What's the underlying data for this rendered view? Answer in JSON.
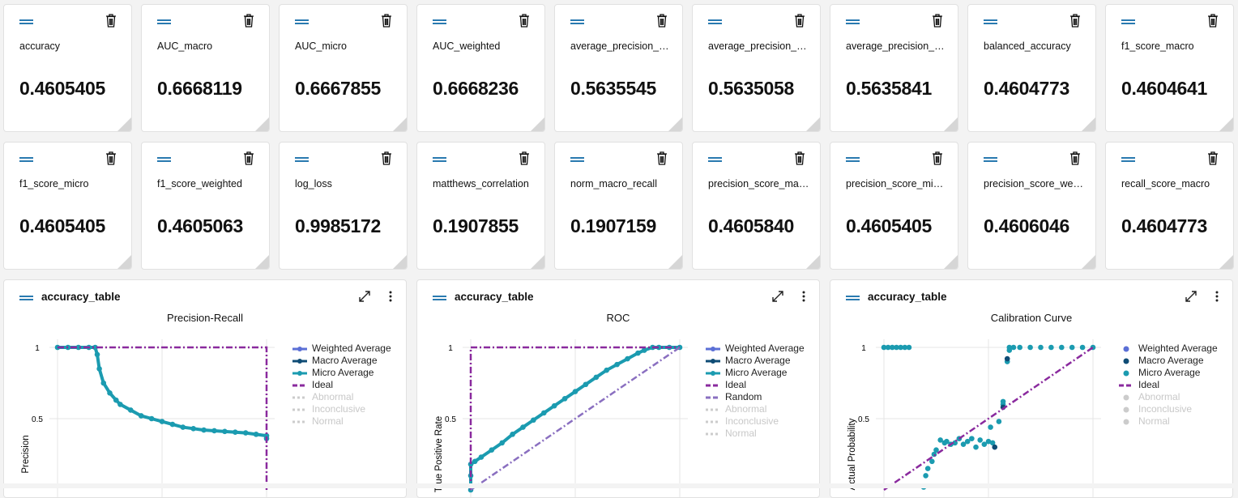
{
  "metrics_row1": [
    {
      "name": "accuracy",
      "value": "0.4605405"
    },
    {
      "name": "AUC_macro",
      "value": "0.6668119"
    },
    {
      "name": "AUC_micro",
      "value": "0.6667855"
    },
    {
      "name": "AUC_weighted",
      "value": "0.6668236"
    },
    {
      "name": "average_precision_sco...",
      "value": "0.5635545"
    },
    {
      "name": "average_precision_sco...",
      "value": "0.5635058"
    },
    {
      "name": "average_precision_sco...",
      "value": "0.5635841"
    },
    {
      "name": "balanced_accuracy",
      "value": "0.4604773"
    },
    {
      "name": "f1_score_macro",
      "value": "0.4604641"
    }
  ],
  "metrics_row2": [
    {
      "name": "f1_score_micro",
      "value": "0.4605405"
    },
    {
      "name": "f1_score_weighted",
      "value": "0.4605063"
    },
    {
      "name": "log_loss",
      "value": "0.9985172"
    },
    {
      "name": "matthews_correlation",
      "value": "0.1907855"
    },
    {
      "name": "norm_macro_recall",
      "value": "0.1907159"
    },
    {
      "name": "precision_score_macro",
      "value": "0.4605840"
    },
    {
      "name": "precision_score_micro",
      "value": "0.4605405"
    },
    {
      "name": "precision_score_weigh...",
      "value": "0.4606046"
    },
    {
      "name": "recall_score_macro",
      "value": "0.4604773"
    }
  ],
  "icons": {
    "drag": "drag-handle-icon",
    "delete": "trash-icon",
    "expand": "expand-icon",
    "more": "more-vertical-icon"
  },
  "colors": {
    "weighted": "#5b6fd6",
    "macro": "#0f4c75",
    "micro": "#1b9bb0",
    "ideal": "#8a2a9e",
    "random": "#8a6fc0",
    "inactive": "#cccccc",
    "accent": "#2a7ab0"
  },
  "chart_data": [
    {
      "panel_title": "accuracy_table",
      "title": "Precision-Recall",
      "type": "line",
      "ylabel": "Precision",
      "xlim": [
        0,
        1
      ],
      "ylim": [
        0,
        1
      ],
      "yticks": [
        "1",
        "0.5"
      ],
      "grid": true,
      "legend_position": "right",
      "legend": [
        "Weighted Average",
        "Macro Average",
        "Micro Average",
        "Ideal",
        "Abnormal",
        "Inconclusive",
        "Normal"
      ],
      "series": [
        {
          "name": "Micro Average",
          "x": [
            0,
            0.05,
            0.1,
            0.15,
            0.18,
            0.19,
            0.2,
            0.22,
            0.25,
            0.28,
            0.3,
            0.35,
            0.4,
            0.45,
            0.5,
            0.55,
            0.6,
            0.65,
            0.7,
            0.75,
            0.8,
            0.85,
            0.9,
            0.95,
            1,
            1
          ],
          "y": [
            1,
            1,
            1,
            1,
            1,
            0.95,
            0.85,
            0.75,
            0.68,
            0.63,
            0.6,
            0.56,
            0.52,
            0.5,
            0.48,
            0.46,
            0.44,
            0.43,
            0.42,
            0.415,
            0.41,
            0.405,
            0.4,
            0.39,
            0.38,
            0.36
          ]
        },
        {
          "name": "Ideal",
          "x": [
            0,
            1,
            1
          ],
          "y": [
            1,
            1,
            0
          ]
        }
      ]
    },
    {
      "panel_title": "accuracy_table",
      "title": "ROC",
      "type": "line",
      "ylabel": "True Positive Rate",
      "xlim": [
        0,
        1
      ],
      "ylim": [
        0,
        1
      ],
      "yticks": [
        "1",
        "0.5"
      ],
      "grid": true,
      "legend_position": "right",
      "legend": [
        "Weighted Average",
        "Macro Average",
        "Micro Average",
        "Ideal",
        "Random",
        "Abnormal",
        "Inconclusive",
        "Normal"
      ],
      "series": [
        {
          "name": "Micro Average",
          "x": [
            0,
            0,
            0,
            0.02,
            0.05,
            0.1,
            0.15,
            0.2,
            0.25,
            0.3,
            0.35,
            0.4,
            0.45,
            0.5,
            0.55,
            0.6,
            0.65,
            0.7,
            0.75,
            0.8,
            0.83,
            0.87,
            0.9,
            0.95,
            1
          ],
          "y": [
            0,
            0.1,
            0.18,
            0.2,
            0.23,
            0.28,
            0.33,
            0.39,
            0.44,
            0.49,
            0.54,
            0.59,
            0.64,
            0.69,
            0.74,
            0.79,
            0.84,
            0.88,
            0.92,
            0.96,
            0.98,
            1,
            1,
            1,
            1
          ]
        },
        {
          "name": "Ideal",
          "x": [
            0,
            0,
            1
          ],
          "y": [
            0,
            1,
            1
          ]
        },
        {
          "name": "Random",
          "x": [
            0,
            1
          ],
          "y": [
            0,
            1
          ]
        }
      ]
    },
    {
      "panel_title": "accuracy_table",
      "title": "Calibration Curve",
      "type": "scatter",
      "ylabel": "Actual Probability",
      "xlim": [
        0,
        1
      ],
      "ylim": [
        0,
        1
      ],
      "yticks": [
        "1",
        "0.5"
      ],
      "grid": true,
      "legend_position": "right",
      "legend": [
        "Weighted Average",
        "Macro Average",
        "Micro Average",
        "Ideal",
        "Abnormal",
        "Inconclusive",
        "Normal"
      ],
      "series": [
        {
          "name": "Micro Average",
          "x": [
            0,
            0.02,
            0.04,
            0.06,
            0.08,
            0.1,
            0.12,
            0.19,
            0.2,
            0.21,
            0.23,
            0.24,
            0.25,
            0.27,
            0.29,
            0.3,
            0.32,
            0.34,
            0.36,
            0.38,
            0.4,
            0.42,
            0.44,
            0.46,
            0.48,
            0.5,
            0.51,
            0.52,
            0.55,
            0.57,
            0.57,
            0.59,
            0.6,
            0.6,
            0.62,
            0.65,
            0.7,
            0.75,
            0.8,
            0.85,
            0.9,
            0.95,
            1
          ],
          "y": [
            1,
            1,
            1,
            1,
            1,
            1,
            1,
            0.02,
            0.1,
            0.15,
            0.2,
            0.25,
            0.28,
            0.35,
            0.33,
            0.34,
            0.32,
            0.33,
            0.36,
            0.32,
            0.34,
            0.36,
            0.3,
            0.35,
            0.32,
            0.34,
            0.44,
            0.33,
            0.48,
            0.62,
            0.6,
            0.9,
            1,
            0.98,
            1,
            1,
            1,
            1,
            1,
            1,
            1,
            1,
            1
          ]
        },
        {
          "name": "Macro Average",
          "x": [
            0.53,
            0.57,
            0.59
          ],
          "y": [
            0.3,
            0.58,
            0.92
          ]
        },
        {
          "name": "Ideal",
          "x": [
            0,
            1
          ],
          "y": [
            0,
            1
          ]
        }
      ]
    }
  ]
}
